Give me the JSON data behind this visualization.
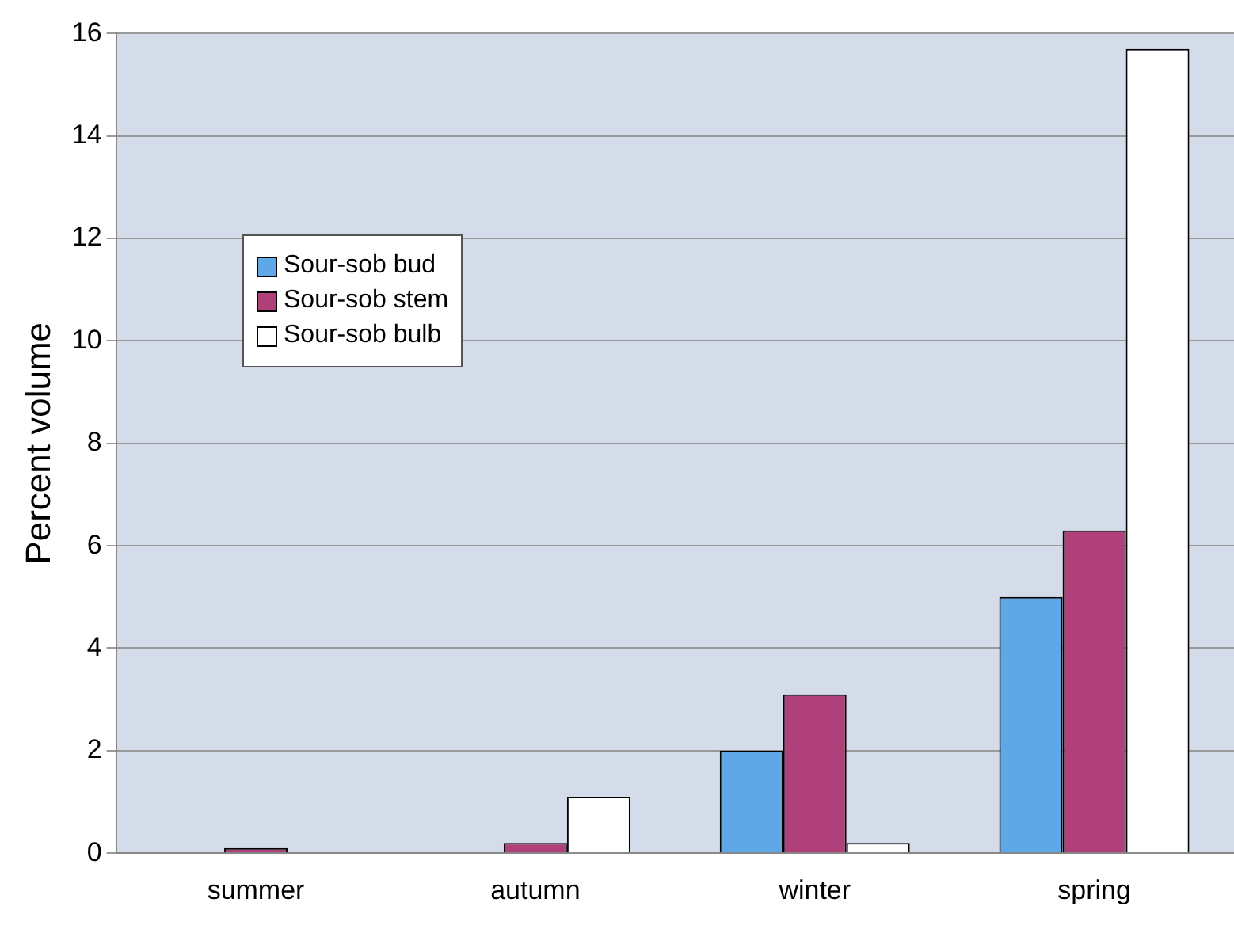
{
  "chart_data": {
    "type": "bar",
    "ylabel": "Percent volume",
    "categories": [
      "summer",
      "autumn",
      "winter",
      "spring"
    ],
    "series": [
      {
        "name": "Sour-sob bud",
        "color": "#5fa8e8",
        "values": [
          null,
          null,
          2.0,
          5.0
        ]
      },
      {
        "name": "Sour-sob stem",
        "color": "#b0407a",
        "values": [
          0.1,
          0.2,
          3.1,
          6.3
        ]
      },
      {
        "name": "Sour-sob bulb",
        "color": "#ffffff",
        "values": [
          null,
          1.1,
          0.2,
          15.7
        ]
      }
    ],
    "ylim": [
      0,
      16
    ],
    "yticks": [
      0,
      2,
      4,
      6,
      8,
      10,
      12,
      14,
      16
    ],
    "grid": "y",
    "legend": "top left"
  }
}
